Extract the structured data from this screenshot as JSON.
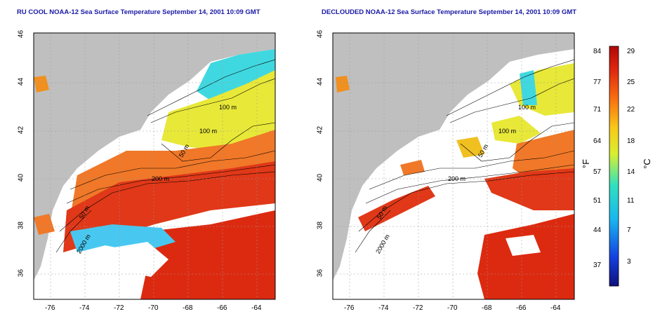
{
  "panels": [
    {
      "title": "RU COOL NOAA-12 Sea Surface Temperature September 14, 2001 10:09 GMT"
    },
    {
      "title": "DECLOUDED NOAA-12 Sea Surface Temperature September 14, 2001 10:09 GMT"
    }
  ],
  "x_ticks": [
    "-76",
    "-74",
    "-72",
    "-70",
    "-68",
    "-66",
    "-64"
  ],
  "y_ticks": [
    "36",
    "38",
    "40",
    "42",
    "44",
    "46"
  ],
  "contour_labels": {
    "left": [
      "100 m",
      "100 m",
      "50 m",
      "200 m",
      "50 m",
      "2000 m"
    ],
    "right": [
      "100 m",
      "100 m",
      "50 m",
      "200 m",
      "50 m",
      "2000 m"
    ]
  },
  "colorbar": {
    "fahrenheit_ticks": [
      "84",
      "77",
      "71",
      "64",
      "57",
      "51",
      "44",
      "37"
    ],
    "celsius_ticks": [
      "29",
      "25",
      "22",
      "18",
      "14",
      "11",
      "7",
      "3"
    ],
    "unit_f": "°F",
    "unit_c": "°C"
  },
  "colors": {
    "land": "#bfbfbf",
    "ocean_warm": "#d8200c",
    "ocean_mid": "#f0c020",
    "ocean_cool": "#30d8d8",
    "cloud": "#ffffff",
    "title": "#1a1aa6"
  }
}
